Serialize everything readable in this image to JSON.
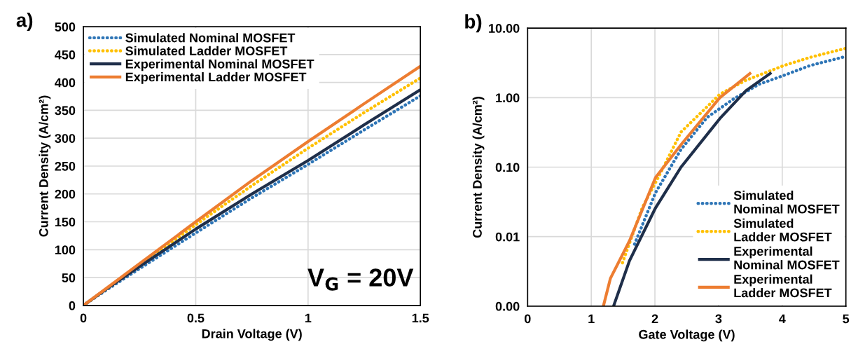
{
  "chart_data": [
    {
      "type": "line",
      "xlabel": "Drain Voltage (V)",
      "ylabel": "Current Density (A/cm²)",
      "annotations": [
        "a)",
        "V$_{G}$ = 20V"
      ],
      "x": [
        0,
        0.1,
        0.25,
        0.5,
        0.75,
        1.0,
        1.25,
        1.5
      ],
      "series": [
        {
          "name": "Simulated Nominal MOSFET",
          "color": "#2e75b6",
          "line_style": "dotted",
          "values": [
            0,
            27,
            66,
            130,
            193,
            253,
            315,
            376
          ]
        },
        {
          "name": "Simulated Ladder MOSFET",
          "color": "#ffc000",
          "line_style": "dotted",
          "values": [
            0,
            29,
            72,
            145,
            215,
            282,
            346,
            408
          ]
        },
        {
          "name": "Experimental Nominal MOSFET",
          "color": "#1f2f4a",
          "line_style": "solid",
          "values": [
            0,
            29,
            70,
            137,
            200,
            260,
            324,
            387
          ]
        },
        {
          "name": "Experimental Ladder MOSFET",
          "color": "#ed7d31",
          "line_style": "solid",
          "values": [
            0,
            30,
            75,
            150,
            224,
            294,
            362,
            429
          ]
        }
      ],
      "xlim": [
        0,
        1.5
      ],
      "xticks": [
        0,
        0.5,
        1,
        1.5
      ],
      "ylim": [
        0,
        500
      ],
      "yticks": [
        0,
        50,
        100,
        150,
        200,
        250,
        300,
        350,
        400,
        450,
        500
      ],
      "grid": true,
      "legend": "top left",
      "marker": "none"
    },
    {
      "type": "line",
      "xlabel": "Gate Voltage (V)",
      "ylabel": "Current Density (A/cm²)",
      "annotations": [
        "b)"
      ],
      "log": "y",
      "series": [
        {
          "name": "Simulated Nominal MOSFET",
          "color": "#2e75b6",
          "line_style": "dotted",
          "x": [
            1.68,
            2.01,
            2.41,
            2.82,
            3.23,
            3.63,
            4.0,
            4.44,
            4.99
          ],
          "values": [
            0.0078,
            0.043,
            0.18,
            0.52,
            0.95,
            1.55,
            2.05,
            2.9,
            3.9
          ]
        },
        {
          "name": "Simulated Ladder MOSFET",
          "color": "#ffc000",
          "line_style": "dotted",
          "x": [
            1.49,
            1.8,
            2.09,
            2.41,
            2.82,
            3.02,
            3.43,
            4.04,
            4.44,
            4.99
          ],
          "values": [
            0.0042,
            0.026,
            0.083,
            0.32,
            0.74,
            1.12,
            1.78,
            2.93,
            3.8,
            5.1
          ]
        },
        {
          "name": "Experimental Nominal MOSFET",
          "color": "#1f2f4a",
          "line_style": "solid",
          "x": [
            1.35,
            1.6,
            2.01,
            2.41,
            3.02,
            3.43,
            3.83
          ],
          "values": [
            0.001,
            0.0045,
            0.026,
            0.1,
            0.5,
            1.26,
            2.29
          ]
        },
        {
          "name": "Experimental Ladder MOSFET",
          "color": "#ed7d31",
          "line_style": "solid",
          "x": [
            1.19,
            1.3,
            1.6,
            2.01,
            2.41,
            3.02,
            3.51
          ],
          "values": [
            0.001,
            0.0025,
            0.0087,
            0.071,
            0.21,
            1.0,
            2.29
          ]
        }
      ],
      "xlim": [
        0,
        5
      ],
      "xticks": [
        0,
        1,
        2,
        3,
        4,
        5
      ],
      "ylim": [
        0.001,
        10
      ],
      "yticks": [
        {
          "value": 0.001,
          "label": "0.00"
        },
        {
          "value": 0.01,
          "label": "0.01"
        },
        {
          "value": 0.1,
          "label": "0.10"
        },
        {
          "value": 1,
          "label": "1.00"
        },
        {
          "value": 10,
          "label": "10.00"
        }
      ],
      "grid": true,
      "legend": "bottom right",
      "marker": "none"
    }
  ]
}
